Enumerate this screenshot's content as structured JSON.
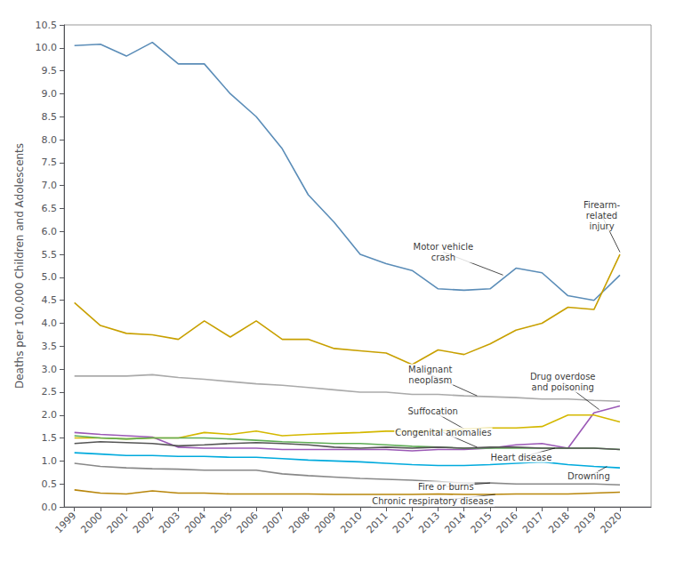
{
  "chart_data": {
    "type": "line",
    "ylabel": "Deaths per 100,000 Children and Adolescents",
    "x": [
      1999,
      2000,
      2001,
      2002,
      2003,
      2004,
      2005,
      2006,
      2007,
      2008,
      2009,
      2010,
      2011,
      2012,
      2013,
      2014,
      2015,
      2016,
      2017,
      2018,
      2019,
      2020
    ],
    "xlim": [
      1998.6,
      2021.2
    ],
    "xticks": [
      1999,
      2000,
      2001,
      2002,
      2003,
      2004,
      2005,
      2006,
      2007,
      2008,
      2009,
      2010,
      2011,
      2012,
      2013,
      2014,
      2015,
      2016,
      2017,
      2018,
      2019,
      2020
    ],
    "ylim": [
      0.0,
      10.5
    ],
    "yticks": [
      {
        "value": 0.0,
        "label": "0.0"
      },
      0.5,
      {
        "value": 1.0,
        "label": "1.0"
      },
      1.5,
      {
        "value": 2.0,
        "label": "2.0"
      },
      2.5,
      {
        "value": 3.0,
        "label": "3.0"
      },
      3.5,
      {
        "value": 4.0,
        "label": "4.0"
      },
      4.5,
      {
        "value": 5.0,
        "label": "5.0"
      },
      5.5,
      {
        "value": 6.0,
        "label": "6.0"
      },
      6.5,
      {
        "value": 7.0,
        "label": "7.0"
      },
      7.5,
      {
        "value": 8.0,
        "label": "8.0"
      },
      8.5,
      {
        "value": 9.0,
        "label": "9.0"
      },
      9.5,
      {
        "value": 10.0,
        "label": "10.0"
      },
      10.5
    ],
    "grid": false,
    "series": [
      {
        "name": "Motor vehicle crash",
        "color": "#5B8DB8",
        "values": [
          10.05,
          10.08,
          9.82,
          10.12,
          9.65,
          9.65,
          9.0,
          8.5,
          7.8,
          6.8,
          6.2,
          5.5,
          5.3,
          5.15,
          4.75,
          4.72,
          4.75,
          5.2,
          5.1,
          4.6,
          4.5,
          5.05
        ]
      },
      {
        "name": "Firearm-related injury",
        "color": "#C8A000",
        "values": [
          4.45,
          3.95,
          3.78,
          3.75,
          3.65,
          4.05,
          3.7,
          4.05,
          3.65,
          3.65,
          3.45,
          3.4,
          3.35,
          3.1,
          3.42,
          3.32,
          3.55,
          3.85,
          4.0,
          4.35,
          4.3,
          5.5
        ]
      },
      {
        "name": "Malignant neoplasm",
        "color": "#AAAAAA",
        "values": [
          2.85,
          2.85,
          2.85,
          2.88,
          2.82,
          2.78,
          2.73,
          2.68,
          2.65,
          2.6,
          2.55,
          2.5,
          2.5,
          2.45,
          2.45,
          2.42,
          2.4,
          2.38,
          2.35,
          2.35,
          2.32,
          2.3
        ]
      },
      {
        "name": "Drug overdose and poisoning",
        "color": "#9B59B6",
        "values": [
          1.62,
          1.58,
          1.55,
          1.52,
          1.3,
          1.28,
          1.28,
          1.28,
          1.25,
          1.25,
          1.25,
          1.25,
          1.25,
          1.22,
          1.25,
          1.25,
          1.28,
          1.35,
          1.38,
          1.28,
          2.05,
          2.2
        ]
      },
      {
        "name": "Suffocation",
        "color": "#D4B800",
        "values": [
          1.5,
          1.5,
          1.48,
          1.5,
          1.5,
          1.62,
          1.58,
          1.65,
          1.55,
          1.58,
          1.6,
          1.62,
          1.65,
          1.65,
          1.65,
          1.7,
          1.72,
          1.72,
          1.75,
          2.0,
          2.0,
          1.85
        ]
      },
      {
        "name": "Congenital anomalies",
        "color": "#5FAD56",
        "values": [
          1.55,
          1.5,
          1.48,
          1.5,
          1.5,
          1.5,
          1.48,
          1.45,
          1.42,
          1.4,
          1.38,
          1.38,
          1.35,
          1.32,
          1.3,
          1.28,
          1.28,
          1.28,
          1.28,
          1.28,
          1.28,
          1.25
        ]
      },
      {
        "name": "Heart disease",
        "color": "#555555",
        "values": [
          1.38,
          1.42,
          1.4,
          1.38,
          1.33,
          1.35,
          1.38,
          1.4,
          1.38,
          1.35,
          1.3,
          1.28,
          1.3,
          1.28,
          1.3,
          1.28,
          1.3,
          1.3,
          1.28,
          1.28,
          1.28,
          1.25
        ]
      },
      {
        "name": "Drowning",
        "color": "#00AADD",
        "values": [
          1.18,
          1.15,
          1.12,
          1.12,
          1.1,
          1.1,
          1.08,
          1.08,
          1.05,
          1.02,
          1.0,
          0.98,
          0.95,
          0.92,
          0.9,
          0.9,
          0.92,
          0.95,
          0.98,
          0.92,
          0.88,
          0.85
        ]
      },
      {
        "name": "Fire or burns",
        "color": "#888888",
        "values": [
          0.95,
          0.88,
          0.85,
          0.83,
          0.82,
          0.8,
          0.8,
          0.8,
          0.72,
          0.68,
          0.65,
          0.62,
          0.6,
          0.58,
          0.55,
          0.52,
          0.52,
          0.5,
          0.5,
          0.5,
          0.5,
          0.48
        ]
      },
      {
        "name": "Chronic respiratory disease",
        "color": "#B8860B",
        "values": [
          0.37,
          0.3,
          0.28,
          0.35,
          0.3,
          0.3,
          0.28,
          0.28,
          0.28,
          0.28,
          0.27,
          0.27,
          0.27,
          0.27,
          0.28,
          0.27,
          0.27,
          0.28,
          0.28,
          0.28,
          0.3,
          0.32
        ]
      }
    ],
    "annotations": [
      {
        "text": "Motor vehicle\ncrash",
        "x": 2015.5,
        "y": 5.05,
        "text_x": 2013.2,
        "text_y": 5.55
      },
      {
        "text": "Firearm-\nrelated\ninjury",
        "x": 2020.0,
        "y": 5.55,
        "text_x": 2019.3,
        "text_y": 6.35
      },
      {
        "text": "Malignant\nneoplasm",
        "x": 2014.5,
        "y": 2.42,
        "text_x": 2012.7,
        "text_y": 2.88
      },
      {
        "text": "Drug overdose\nand poisoning",
        "x": 2019.2,
        "y": 2.12,
        "text_x": 2017.8,
        "text_y": 2.72
      },
      {
        "text": "Suffocation",
        "x": 2014.0,
        "y": 1.7,
        "text_x": 2012.8,
        "text_y": 2.08
      },
      {
        "text": "Congenital anomalies",
        "x": 2014.5,
        "y": 1.3,
        "text_x": 2013.2,
        "text_y": 1.62
      },
      {
        "text": "Heart disease",
        "x": 2017.5,
        "y": 1.28,
        "text_x": 2016.2,
        "text_y": 1.08
      },
      {
        "text": "Drowning",
        "x": 2019.5,
        "y": 0.88,
        "text_x": 2018.8,
        "text_y": 0.66
      },
      {
        "text": "Fire or burns",
        "x": 2015.0,
        "y": 0.52,
        "text_x": 2013.3,
        "text_y": 0.44
      },
      {
        "text": "Chronic respiratory disease",
        "x": 2015.2,
        "y": 0.27,
        "text_x": 2012.8,
        "text_y": 0.12
      }
    ]
  }
}
